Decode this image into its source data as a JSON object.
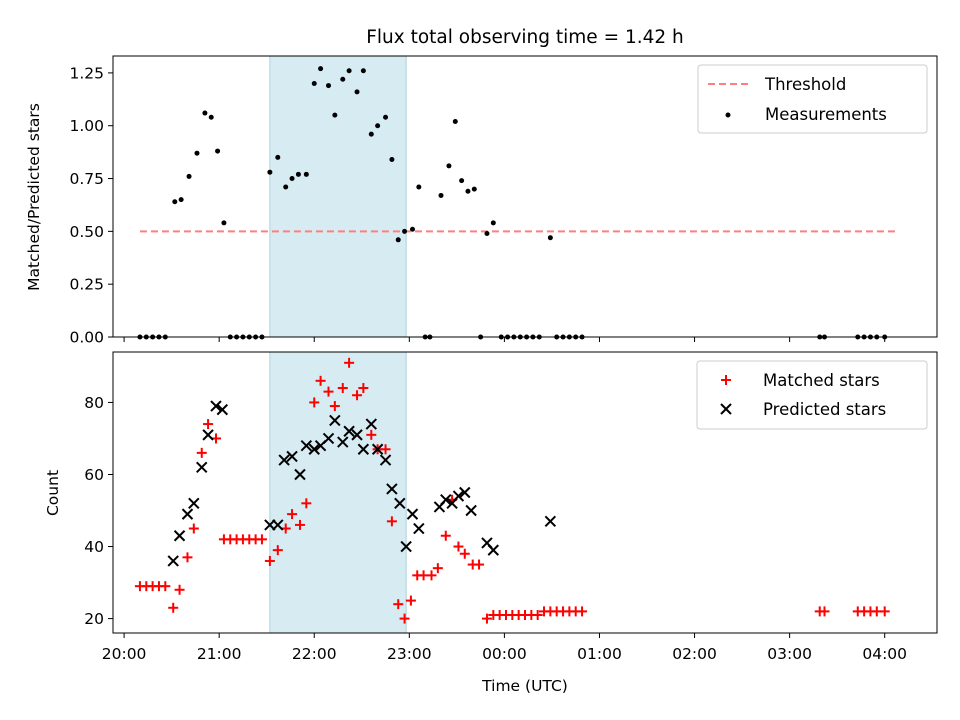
{
  "chart_data": [
    {
      "type": "scatter",
      "title": "Flux total observing time = 1.42 h",
      "xlabel": "",
      "ylabel": "Matched/Predicted stars",
      "xlim": [
        "19:53",
        "04:33"
      ],
      "ylim": [
        0,
        1.33
      ],
      "yticks": [
        0.0,
        0.25,
        0.5,
        0.75,
        1.0,
        1.25
      ],
      "ytick_labels": [
        "0.00",
        "0.25",
        "0.50",
        "0.75",
        "1.00",
        "1.25"
      ],
      "xticks": [
        "20:00",
        "21:00",
        "22:00",
        "23:00",
        "00:00",
        "01:00",
        "02:00",
        "03:00",
        "04:00"
      ],
      "shaded_span": [
        "21:32",
        "22:58"
      ],
      "legend": {
        "position": "upper right",
        "entries": [
          "Threshold",
          "Measurements"
        ]
      },
      "threshold": {
        "name": "Threshold",
        "y": 0.5,
        "x_range": [
          "20:10",
          "04:08"
        ],
        "color": "#ff7f7f",
        "style": "dashed"
      },
      "series": [
        {
          "name": "Measurements",
          "color": "#000000",
          "points": [
            [
              "20:10",
              0.0
            ],
            [
              "20:14",
              0.0
            ],
            [
              "20:18",
              0.0
            ],
            [
              "20:22",
              0.0
            ],
            [
              "20:26",
              0.0
            ],
            [
              "20:32",
              0.64
            ],
            [
              "20:36",
              0.65
            ],
            [
              "20:41",
              0.76
            ],
            [
              "20:46",
              0.87
            ],
            [
              "20:51",
              1.06
            ],
            [
              "20:55",
              1.04
            ],
            [
              "20:59",
              0.88
            ],
            [
              "21:03",
              0.54
            ],
            [
              "21:07",
              0.0
            ],
            [
              "21:11",
              0.0
            ],
            [
              "21:15",
              0.0
            ],
            [
              "21:19",
              0.0
            ],
            [
              "21:23",
              0.0
            ],
            [
              "21:27",
              0.0
            ],
            [
              "21:32",
              0.78
            ],
            [
              "21:37",
              0.85
            ],
            [
              "21:42",
              0.71
            ],
            [
              "21:46",
              0.75
            ],
            [
              "21:50",
              0.77
            ],
            [
              "21:55",
              0.77
            ],
            [
              "22:00",
              1.2
            ],
            [
              "22:04",
              1.27
            ],
            [
              "22:09",
              1.19
            ],
            [
              "22:13",
              1.05
            ],
            [
              "22:18",
              1.22
            ],
            [
              "22:22",
              1.26
            ],
            [
              "22:27",
              1.16
            ],
            [
              "22:31",
              1.26
            ],
            [
              "22:36",
              0.96
            ],
            [
              "22:40",
              1.0
            ],
            [
              "22:45",
              1.04
            ],
            [
              "22:49",
              0.84
            ],
            [
              "22:53",
              0.46
            ],
            [
              "22:57",
              0.5
            ],
            [
              "23:02",
              0.51
            ],
            [
              "23:06",
              0.71
            ],
            [
              "23:10",
              0.0
            ],
            [
              "23:13",
              0.0
            ],
            [
              "23:20",
              0.67
            ],
            [
              "23:25",
              0.81
            ],
            [
              "23:29",
              1.02
            ],
            [
              "23:33",
              0.74
            ],
            [
              "23:37",
              0.69
            ],
            [
              "23:41",
              0.7
            ],
            [
              "23:45",
              0.0
            ],
            [
              "23:49",
              0.49
            ],
            [
              "23:53",
              0.54
            ],
            [
              "23:58",
              0.0
            ],
            [
              "00:02",
              0.0
            ],
            [
              "00:06",
              0.0
            ],
            [
              "00:10",
              0.0
            ],
            [
              "00:14",
              0.0
            ],
            [
              "00:18",
              0.0
            ],
            [
              "00:22",
              0.0
            ],
            [
              "00:29",
              0.47
            ],
            [
              "00:33",
              0.0
            ],
            [
              "00:37",
              0.0
            ],
            [
              "00:41",
              0.0
            ],
            [
              "00:45",
              0.0
            ],
            [
              "00:49",
              0.0
            ],
            [
              "03:19",
              0.0
            ],
            [
              "03:22",
              0.0
            ],
            [
              "03:43",
              0.0
            ],
            [
              "03:47",
              0.0
            ],
            [
              "03:51",
              0.0
            ],
            [
              "03:55",
              0.0
            ],
            [
              "04:00",
              0.0
            ]
          ]
        }
      ]
    },
    {
      "type": "scatter",
      "title": "",
      "xlabel": "Time (UTC)",
      "ylabel": "Count",
      "xlim": [
        "19:53",
        "04:33"
      ],
      "ylim": [
        16,
        94
      ],
      "yticks": [
        20,
        40,
        60,
        80
      ],
      "ytick_labels": [
        "20",
        "40",
        "60",
        "80"
      ],
      "xticks": [
        "20:00",
        "21:00",
        "22:00",
        "23:00",
        "00:00",
        "01:00",
        "02:00",
        "03:00",
        "04:00"
      ],
      "xtick_labels": [
        "20:00",
        "21:00",
        "22:00",
        "23:00",
        "00:00",
        "01:00",
        "02:00",
        "03:00",
        "04:00"
      ],
      "shaded_span": [
        "21:32",
        "22:58"
      ],
      "legend": {
        "position": "upper right",
        "entries": [
          "Matched stars",
          "Predicted stars"
        ]
      },
      "series": [
        {
          "name": "Matched stars",
          "color": "#ff0000",
          "marker": "plus",
          "points": [
            [
              "20:10",
              29
            ],
            [
              "20:14",
              29
            ],
            [
              "20:18",
              29
            ],
            [
              "20:22",
              29
            ],
            [
              "20:26",
              29
            ],
            [
              "20:31",
              23
            ],
            [
              "20:35",
              28
            ],
            [
              "20:40",
              37
            ],
            [
              "20:44",
              45
            ],
            [
              "20:49",
              66
            ],
            [
              "20:53",
              74
            ],
            [
              "20:58",
              70
            ],
            [
              "21:03",
              42
            ],
            [
              "21:07",
              42
            ],
            [
              "21:11",
              42
            ],
            [
              "21:15",
              42
            ],
            [
              "21:19",
              42
            ],
            [
              "21:23",
              42
            ],
            [
              "21:27",
              42
            ],
            [
              "21:32",
              36
            ],
            [
              "21:37",
              39
            ],
            [
              "21:42",
              45
            ],
            [
              "21:46",
              49
            ],
            [
              "21:51",
              46
            ],
            [
              "21:55",
              52
            ],
            [
              "22:00",
              80
            ],
            [
              "22:04",
              86
            ],
            [
              "22:09",
              83
            ],
            [
              "22:13",
              79
            ],
            [
              "22:18",
              84
            ],
            [
              "22:22",
              91
            ],
            [
              "22:27",
              82
            ],
            [
              "22:31",
              84
            ],
            [
              "22:36",
              71
            ],
            [
              "22:40",
              67
            ],
            [
              "22:45",
              67
            ],
            [
              "22:49",
              47
            ],
            [
              "22:53",
              24
            ],
            [
              "22:57",
              20
            ],
            [
              "23:01",
              25
            ],
            [
              "23:05",
              32
            ],
            [
              "23:09",
              32
            ],
            [
              "23:14",
              32
            ],
            [
              "23:18",
              34
            ],
            [
              "23:23",
              43
            ],
            [
              "23:27",
              53
            ],
            [
              "23:31",
              40
            ],
            [
              "23:35",
              38
            ],
            [
              "23:40",
              35
            ],
            [
              "23:44",
              35
            ],
            [
              "23:49",
              20
            ],
            [
              "23:53",
              21
            ],
            [
              "23:57",
              21
            ],
            [
              "00:01",
              21
            ],
            [
              "00:05",
              21
            ],
            [
              "00:09",
              21
            ],
            [
              "00:13",
              21
            ],
            [
              "00:17",
              21
            ],
            [
              "00:21",
              21
            ],
            [
              "00:25",
              22
            ],
            [
              "00:29",
              22
            ],
            [
              "00:33",
              22
            ],
            [
              "00:37",
              22
            ],
            [
              "00:41",
              22
            ],
            [
              "00:45",
              22
            ],
            [
              "00:49",
              22
            ],
            [
              "03:19",
              22
            ],
            [
              "03:22",
              22
            ],
            [
              "03:43",
              22
            ],
            [
              "03:47",
              22
            ],
            [
              "03:51",
              22
            ],
            [
              "03:55",
              22
            ],
            [
              "04:00",
              22
            ]
          ]
        },
        {
          "name": "Predicted stars",
          "color": "#000000",
          "marker": "x",
          "points": [
            [
              "20:31",
              36
            ],
            [
              "20:35",
              43
            ],
            [
              "20:40",
              49
            ],
            [
              "20:44",
              52
            ],
            [
              "20:49",
              62
            ],
            [
              "20:53",
              71
            ],
            [
              "20:58",
              79
            ],
            [
              "21:02",
              78
            ],
            [
              "21:32",
              46
            ],
            [
              "21:37",
              46
            ],
            [
              "21:41",
              64
            ],
            [
              "21:46",
              65
            ],
            [
              "21:51",
              60
            ],
            [
              "21:55",
              68
            ],
            [
              "22:00",
              67
            ],
            [
              "22:04",
              68
            ],
            [
              "22:09",
              70
            ],
            [
              "22:13",
              75
            ],
            [
              "22:18",
              69
            ],
            [
              "22:22",
              72
            ],
            [
              "22:27",
              71
            ],
            [
              "22:31",
              67
            ],
            [
              "22:36",
              74
            ],
            [
              "22:40",
              67
            ],
            [
              "22:45",
              64
            ],
            [
              "22:49",
              56
            ],
            [
              "22:54",
              52
            ],
            [
              "22:58",
              40
            ],
            [
              "23:02",
              49
            ],
            [
              "23:06",
              45
            ],
            [
              "23:19",
              51
            ],
            [
              "23:23",
              53
            ],
            [
              "23:27",
              52
            ],
            [
              "23:31",
              54
            ],
            [
              "23:35",
              55
            ],
            [
              "23:39",
              50
            ],
            [
              "23:49",
              41
            ],
            [
              "23:53",
              39
            ],
            [
              "00:29",
              47
            ]
          ]
        }
      ]
    }
  ]
}
